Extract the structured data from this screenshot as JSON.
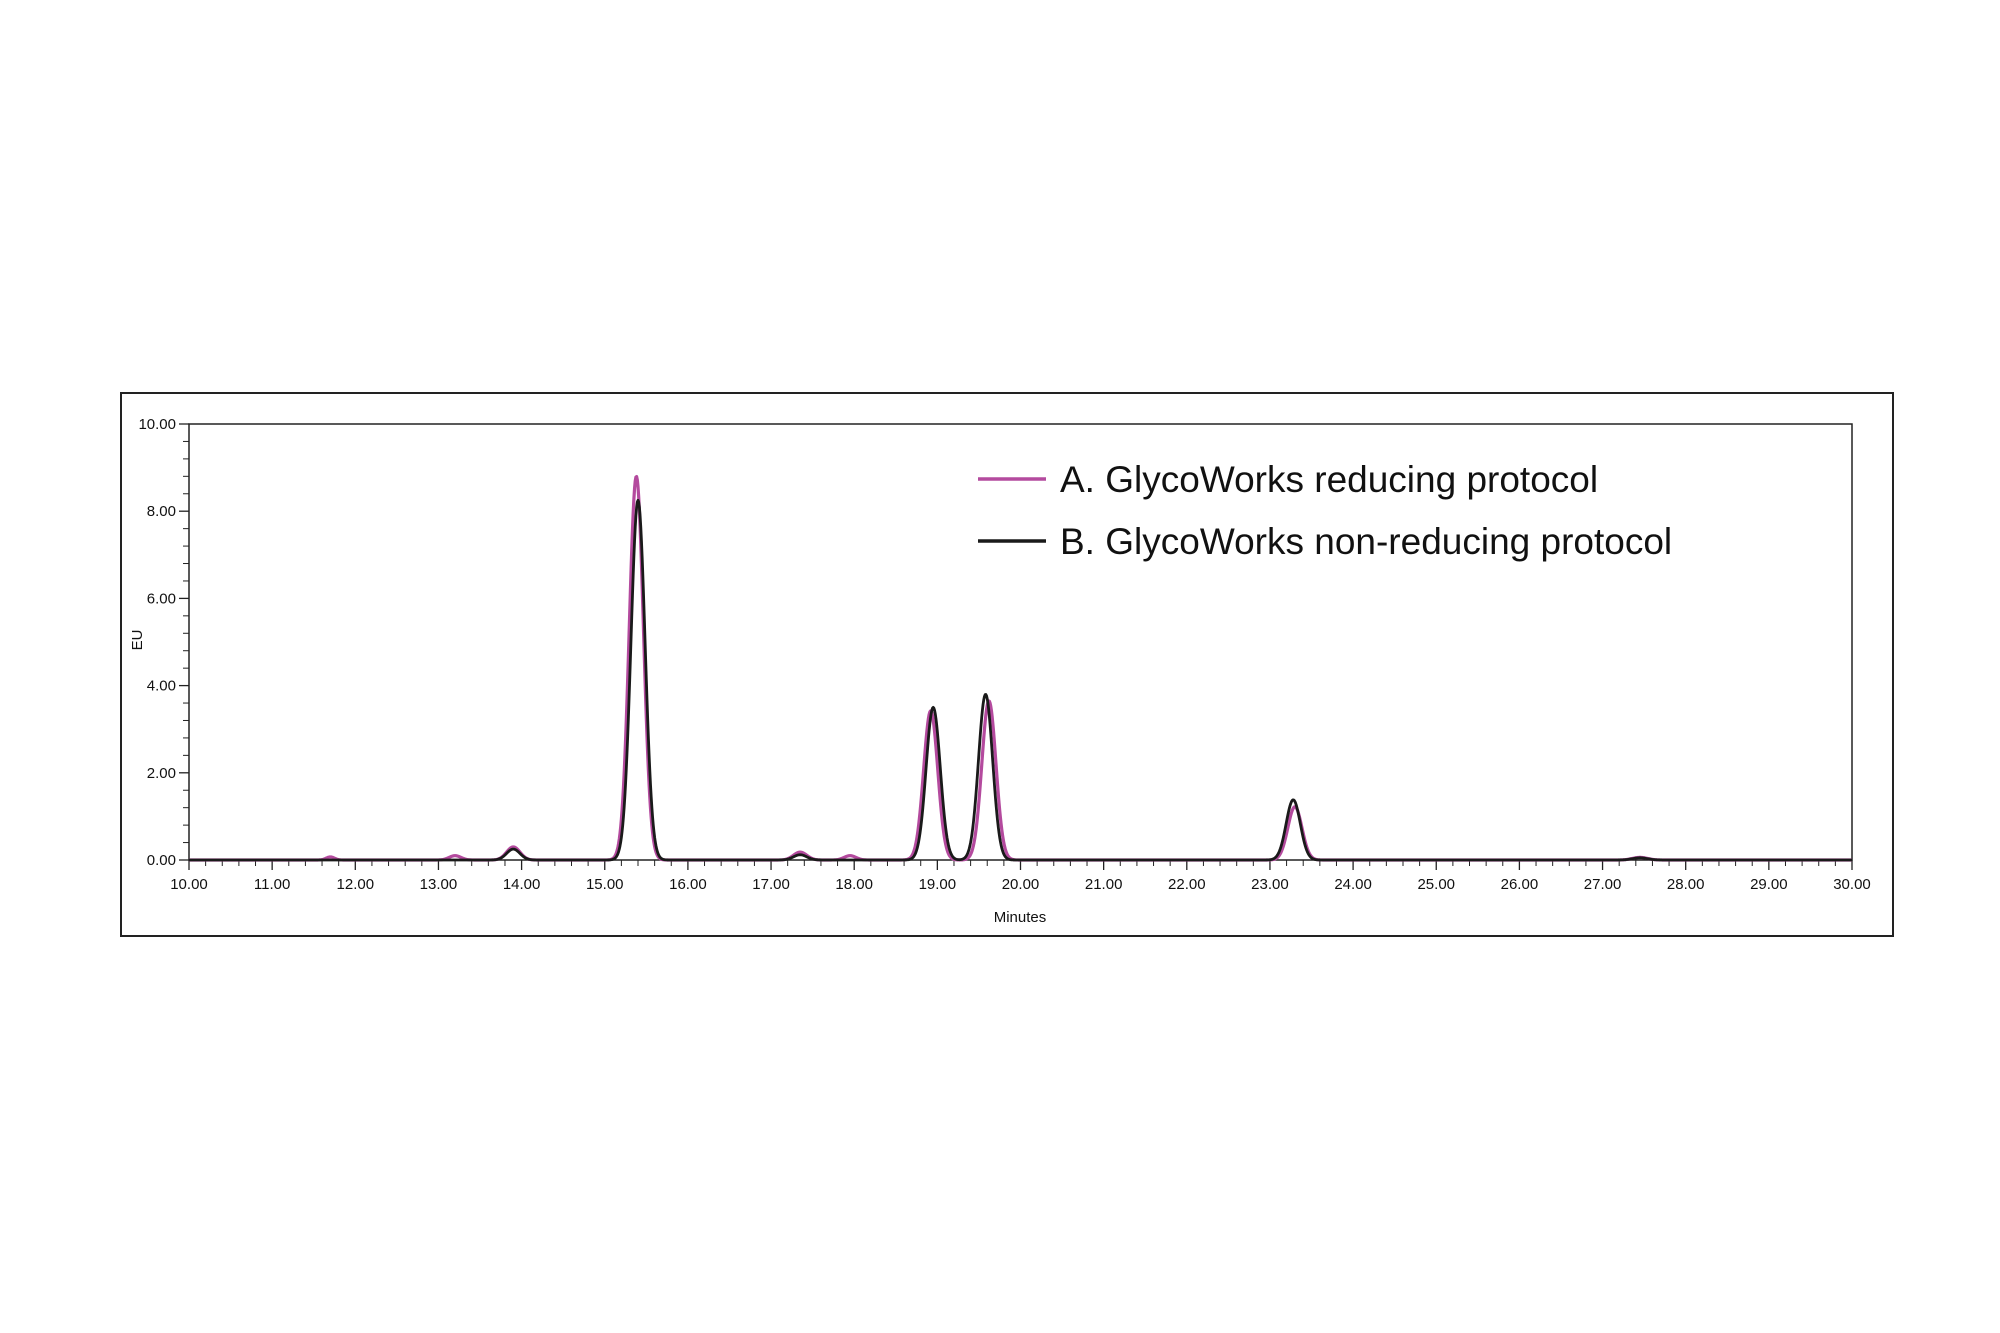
{
  "chart_data": {
    "type": "line",
    "xlabel": "Minutes",
    "ylabel": "EU",
    "xlim": [
      10.0,
      30.0
    ],
    "ylim": [
      0.0,
      10.0
    ],
    "x_ticks": [
      "10.00",
      "11.00",
      "12.00",
      "13.00",
      "14.00",
      "15.00",
      "16.00",
      "17.00",
      "18.00",
      "19.00",
      "20.00",
      "21.00",
      "22.00",
      "23.00",
      "24.00",
      "25.00",
      "26.00",
      "27.00",
      "28.00",
      "29.00",
      "30.00"
    ],
    "y_ticks": [
      "0.00",
      "2.00",
      "4.00",
      "6.00",
      "8.00",
      "10.00"
    ],
    "grid": false,
    "legend_position": "top-right",
    "series": [
      {
        "name": "A. GlycoWorks reducing protocol",
        "color": "#b44a9e",
        "peaks": [
          {
            "rt": 11.7,
            "height": 0.07,
            "width": 0.05
          },
          {
            "rt": 13.2,
            "height": 0.1,
            "width": 0.07
          },
          {
            "rt": 13.9,
            "height": 0.3,
            "width": 0.08
          },
          {
            "rt": 15.38,
            "height": 8.8,
            "width": 0.085
          },
          {
            "rt": 17.35,
            "height": 0.18,
            "width": 0.08
          },
          {
            "rt": 17.95,
            "height": 0.1,
            "width": 0.07
          },
          {
            "rt": 18.92,
            "height": 3.42,
            "width": 0.085
          },
          {
            "rt": 19.62,
            "height": 3.65,
            "width": 0.085
          },
          {
            "rt": 23.3,
            "height": 1.22,
            "width": 0.085
          },
          {
            "rt": 27.45,
            "height": 0.06,
            "width": 0.09
          }
        ]
      },
      {
        "name": "B. GlycoWorks non-reducing protocol",
        "color": "#1a1a1a",
        "peaks": [
          {
            "rt": 13.9,
            "height": 0.25,
            "width": 0.08
          },
          {
            "rt": 15.4,
            "height": 8.25,
            "width": 0.085
          },
          {
            "rt": 17.35,
            "height": 0.12,
            "width": 0.08
          },
          {
            "rt": 18.95,
            "height": 3.5,
            "width": 0.085
          },
          {
            "rt": 19.58,
            "height": 3.8,
            "width": 0.085
          },
          {
            "rt": 23.28,
            "height": 1.38,
            "width": 0.085
          },
          {
            "rt": 27.45,
            "height": 0.05,
            "width": 0.09
          }
        ]
      }
    ]
  }
}
